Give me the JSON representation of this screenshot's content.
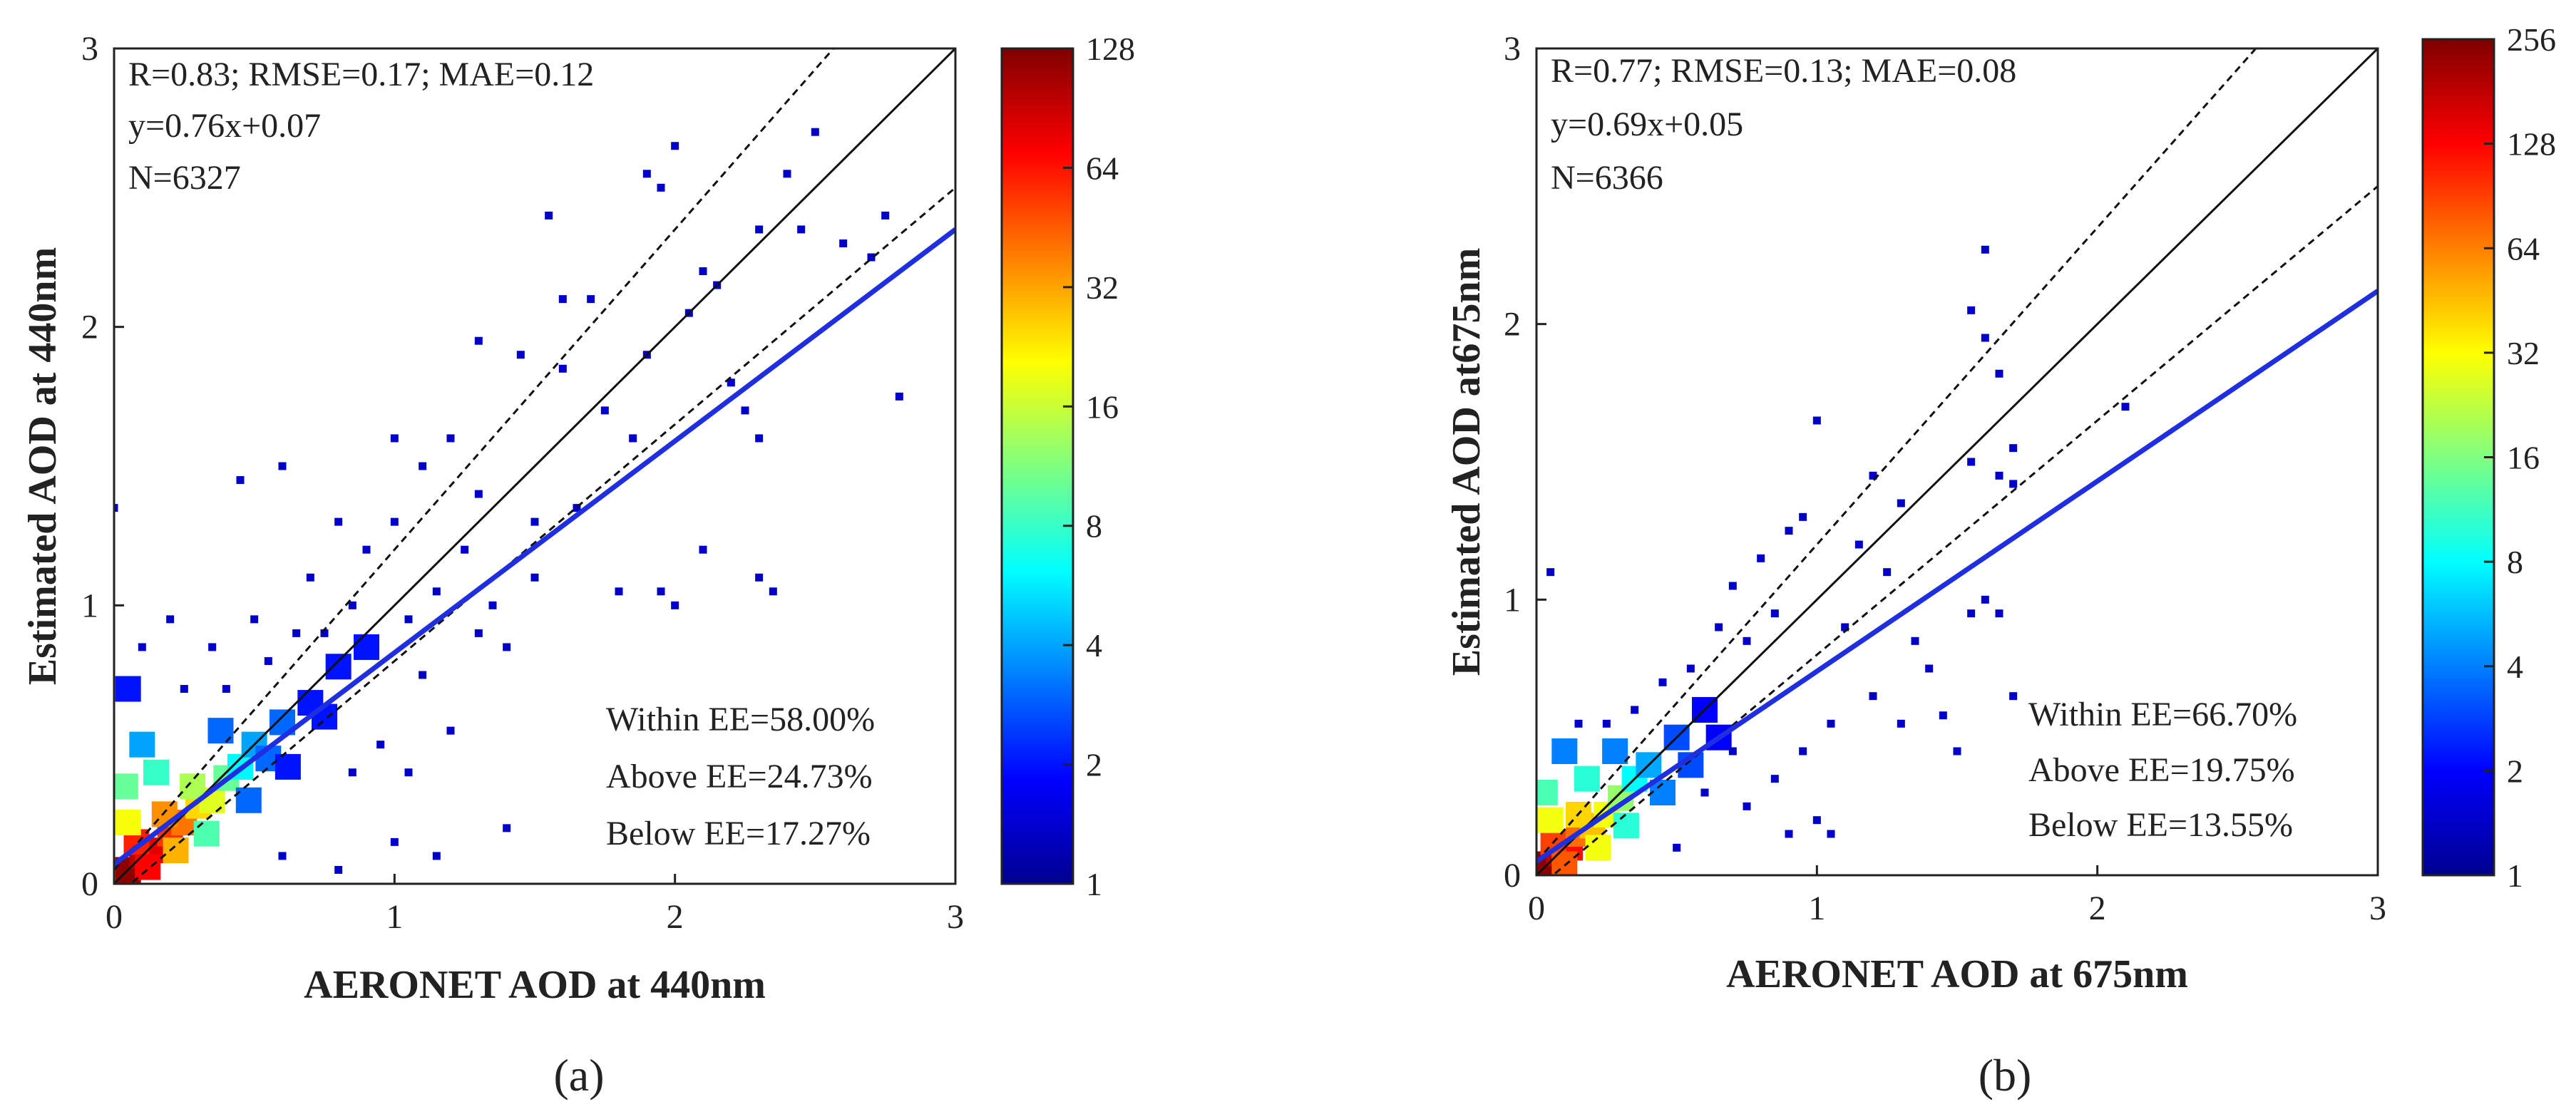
{
  "figure": {
    "panels": [
      {
        "panel_label": "(a)",
        "stats": [
          "R=0.83; RMSE=0.17; MAE=0.12",
          "y=0.76x+0.07",
          "N=6327"
        ],
        "ee": [
          "Within EE=58.00%",
          "Above EE=24.73%",
          "Below EE=17.27%"
        ],
        "colorbar": {
          "ticks": [
            "1",
            "2",
            "4",
            "8",
            "16",
            "32",
            "64",
            "128"
          ],
          "min": 1,
          "max": 128
        }
      },
      {
        "panel_label": "(b)",
        "stats": [
          "R=0.77; RMSE=0.13; MAE=0.08",
          "y=0.69x+0.05",
          "N=6366"
        ],
        "ee": [
          "Within EE=66.70%",
          "Above EE=19.75%",
          "Below EE=13.55%"
        ],
        "colorbar": {
          "ticks": [
            "1",
            "2",
            "4",
            "8",
            "16",
            "32",
            "64",
            "128",
            "256"
          ],
          "min": 1,
          "max": 256
        }
      }
    ]
  },
  "chart_data": [
    {
      "type": "scatter",
      "subtype": "density-heatmap",
      "xlabel": "AERONET AOD at 440nm",
      "ylabel": "Estimated AOD at 440nm",
      "xlim": [
        0,
        3
      ],
      "ylim": [
        0,
        3
      ],
      "xticks": [
        "0",
        "1",
        "2",
        "3"
      ],
      "yticks": [
        "0",
        "1",
        "2",
        "3"
      ],
      "fit": {
        "slope": 0.76,
        "intercept": 0.07,
        "color": "#1f2fe0"
      },
      "one_to_one": {
        "slope": 1,
        "intercept": 0
      },
      "ee_upper": {
        "slope": 1.15,
        "intercept": 0.05
      },
      "ee_lower": {
        "slope": 0.85,
        "intercept": -0.05
      },
      "density_points": [
        [
          0.05,
          0.05,
          120
        ],
        [
          0.1,
          0.1,
          100
        ],
        [
          0.15,
          0.12,
          80
        ],
        [
          0.08,
          0.15,
          60
        ],
        [
          0.2,
          0.18,
          55
        ],
        [
          0.12,
          0.06,
          70
        ],
        [
          0.25,
          0.22,
          40
        ],
        [
          0.3,
          0.28,
          25
        ],
        [
          0.18,
          0.25,
          35
        ],
        [
          0.22,
          0.12,
          30
        ],
        [
          0.35,
          0.3,
          18
        ],
        [
          0.28,
          0.35,
          14
        ],
        [
          0.4,
          0.38,
          10
        ],
        [
          0.05,
          0.22,
          20
        ],
        [
          0.04,
          0.35,
          10
        ],
        [
          0.15,
          0.4,
          8
        ],
        [
          0.33,
          0.18,
          9
        ],
        [
          0.45,
          0.42,
          6
        ],
        [
          0.5,
          0.5,
          4
        ],
        [
          0.55,
          0.45,
          3
        ],
        [
          0.6,
          0.58,
          3
        ],
        [
          0.1,
          0.5,
          4
        ],
        [
          0.38,
          0.55,
          3
        ],
        [
          0.48,
          0.3,
          3
        ],
        [
          0.62,
          0.42,
          2
        ],
        [
          0.7,
          0.65,
          2
        ],
        [
          0.75,
          0.6,
          2
        ],
        [
          0.8,
          0.78,
          2
        ],
        [
          0.9,
          0.85,
          2
        ],
        [
          0.05,
          0.7,
          2
        ]
      ],
      "scatter_points": [
        [
          1.55,
          2.4
        ],
        [
          1.6,
          2.1
        ],
        [
          1.7,
          2.1
        ],
        [
          1.9,
          2.55
        ],
        [
          1.95,
          2.5
        ],
        [
          2.0,
          2.65
        ],
        [
          2.1,
          2.2
        ],
        [
          2.15,
          2.15
        ],
        [
          2.3,
          2.35
        ],
        [
          2.4,
          2.55
        ],
        [
          2.45,
          2.35
        ],
        [
          2.5,
          2.7
        ],
        [
          2.6,
          2.3
        ],
        [
          2.7,
          2.25
        ],
        [
          2.8,
          1.75
        ],
        [
          2.75,
          2.4
        ],
        [
          2.3,
          1.1
        ],
        [
          2.35,
          1.05
        ],
        [
          2.1,
          1.2
        ],
        [
          1.95,
          1.05
        ],
        [
          2.0,
          1.0
        ],
        [
          1.8,
          1.05
        ],
        [
          1.5,
          1.3
        ],
        [
          1.4,
          0.2
        ],
        [
          1.3,
          1.95
        ],
        [
          1.45,
          1.9
        ],
        [
          1.6,
          1.85
        ],
        [
          1.75,
          1.7
        ],
        [
          1.85,
          1.6
        ],
        [
          1.2,
          1.6
        ],
        [
          1.0,
          1.6
        ],
        [
          0.6,
          1.5
        ],
        [
          0.45,
          1.45
        ],
        [
          0.0,
          1.35
        ],
        [
          1.1,
          1.5
        ],
        [
          1.3,
          1.4
        ],
        [
          1.25,
          1.2
        ],
        [
          1.5,
          1.1
        ],
        [
          1.65,
          1.35
        ],
        [
          1.9,
          1.9
        ],
        [
          2.05,
          2.05
        ],
        [
          2.2,
          1.8
        ],
        [
          2.25,
          1.7
        ],
        [
          2.3,
          1.6
        ],
        [
          1.0,
          1.3
        ],
        [
          0.9,
          1.2
        ],
        [
          0.8,
          1.3
        ],
        [
          0.7,
          1.1
        ],
        [
          1.15,
          1.05
        ],
        [
          1.3,
          0.9
        ],
        [
          1.4,
          0.85
        ],
        [
          1.1,
          0.75
        ],
        [
          1.2,
          0.55
        ],
        [
          1.05,
          0.4
        ],
        [
          0.95,
          0.5
        ],
        [
          0.85,
          0.4
        ],
        [
          0.6,
          0.1
        ],
        [
          0.8,
          0.05
        ],
        [
          1.0,
          0.15
        ],
        [
          1.15,
          0.1
        ],
        [
          0.65,
          0.9
        ],
        [
          0.55,
          0.8
        ],
        [
          0.5,
          0.95
        ],
        [
          0.35,
          0.85
        ],
        [
          0.2,
          0.95
        ],
        [
          0.1,
          0.85
        ],
        [
          0.25,
          0.7
        ],
        [
          0.4,
          0.7
        ],
        [
          0.75,
          0.9
        ],
        [
          0.85,
          1.0
        ],
        [
          1.05,
          0.95
        ],
        [
          1.35,
          1.0
        ]
      ]
    },
    {
      "type": "scatter",
      "subtype": "density-heatmap",
      "xlabel": "AERONET AOD at 675nm",
      "ylabel": "Estimated AOD at675nm",
      "xlim": [
        0,
        3
      ],
      "ylim": [
        0,
        3
      ],
      "xticks": [
        "0",
        "1",
        "2",
        "3"
      ],
      "yticks": [
        "0",
        "1",
        "2",
        "3"
      ],
      "fit": {
        "slope": 0.69,
        "intercept": 0.05,
        "color": "#1f2fe0"
      },
      "one_to_one": {
        "slope": 1,
        "intercept": 0
      },
      "ee_upper": {
        "slope": 1.15,
        "intercept": 0.05
      },
      "ee_lower": {
        "slope": 0.85,
        "intercept": -0.05
      },
      "density_points": [
        [
          0.04,
          0.04,
          240
        ],
        [
          0.08,
          0.08,
          180
        ],
        [
          0.12,
          0.1,
          120
        ],
        [
          0.06,
          0.12,
          90
        ],
        [
          0.15,
          0.15,
          70
        ],
        [
          0.1,
          0.04,
          80
        ],
        [
          0.2,
          0.18,
          45
        ],
        [
          0.25,
          0.22,
          30
        ],
        [
          0.15,
          0.22,
          40
        ],
        [
          0.22,
          0.1,
          30
        ],
        [
          0.3,
          0.28,
          18
        ],
        [
          0.05,
          0.2,
          30
        ],
        [
          0.03,
          0.3,
          12
        ],
        [
          0.32,
          0.18,
          10
        ],
        [
          0.35,
          0.35,
          8
        ],
        [
          0.18,
          0.35,
          10
        ],
        [
          0.4,
          0.4,
          5
        ],
        [
          0.45,
          0.3,
          4
        ],
        [
          0.5,
          0.5,
          3
        ],
        [
          0.28,
          0.45,
          4
        ],
        [
          0.55,
          0.4,
          3
        ],
        [
          0.6,
          0.6,
          2
        ],
        [
          0.1,
          0.45,
          4
        ],
        [
          0.65,
          0.5,
          2
        ]
      ],
      "scatter_points": [
        [
          1.6,
          2.27
        ],
        [
          1.55,
          2.05
        ],
        [
          1.6,
          1.95
        ],
        [
          1.65,
          1.82
        ],
        [
          1.7,
          1.55
        ],
        [
          1.65,
          1.45
        ],
        [
          1.7,
          1.42
        ],
        [
          1.55,
          1.5
        ],
        [
          2.1,
          1.7
        ],
        [
          1.0,
          1.65
        ],
        [
          1.2,
          1.45
        ],
        [
          1.3,
          1.35
        ],
        [
          1.15,
          1.2
        ],
        [
          1.25,
          1.1
        ],
        [
          1.6,
          1.0
        ],
        [
          1.65,
          0.95
        ],
        [
          1.55,
          0.95
        ],
        [
          1.7,
          0.65
        ],
        [
          1.45,
          0.58
        ],
        [
          1.3,
          0.55
        ],
        [
          1.4,
          0.75
        ],
        [
          1.2,
          0.65
        ],
        [
          1.05,
          0.55
        ],
        [
          0.95,
          0.45
        ],
        [
          0.85,
          0.35
        ],
        [
          0.75,
          0.25
        ],
        [
          0.9,
          0.15
        ],
        [
          1.05,
          0.15
        ],
        [
          1.0,
          0.2
        ],
        [
          0.05,
          1.1
        ],
        [
          0.7,
          1.05
        ],
        [
          0.8,
          1.15
        ],
        [
          0.9,
          1.25
        ],
        [
          0.95,
          1.3
        ],
        [
          0.85,
          0.95
        ],
        [
          0.75,
          0.85
        ],
        [
          0.65,
          0.9
        ],
        [
          0.55,
          0.75
        ],
        [
          0.45,
          0.7
        ],
        [
          0.35,
          0.6
        ],
        [
          0.25,
          0.55
        ],
        [
          0.15,
          0.55
        ],
        [
          0.6,
          0.3
        ],
        [
          0.5,
          0.1
        ],
        [
          0.7,
          0.45
        ],
        [
          1.1,
          0.9
        ],
        [
          1.35,
          0.85
        ],
        [
          1.5,
          0.45
        ]
      ]
    }
  ]
}
